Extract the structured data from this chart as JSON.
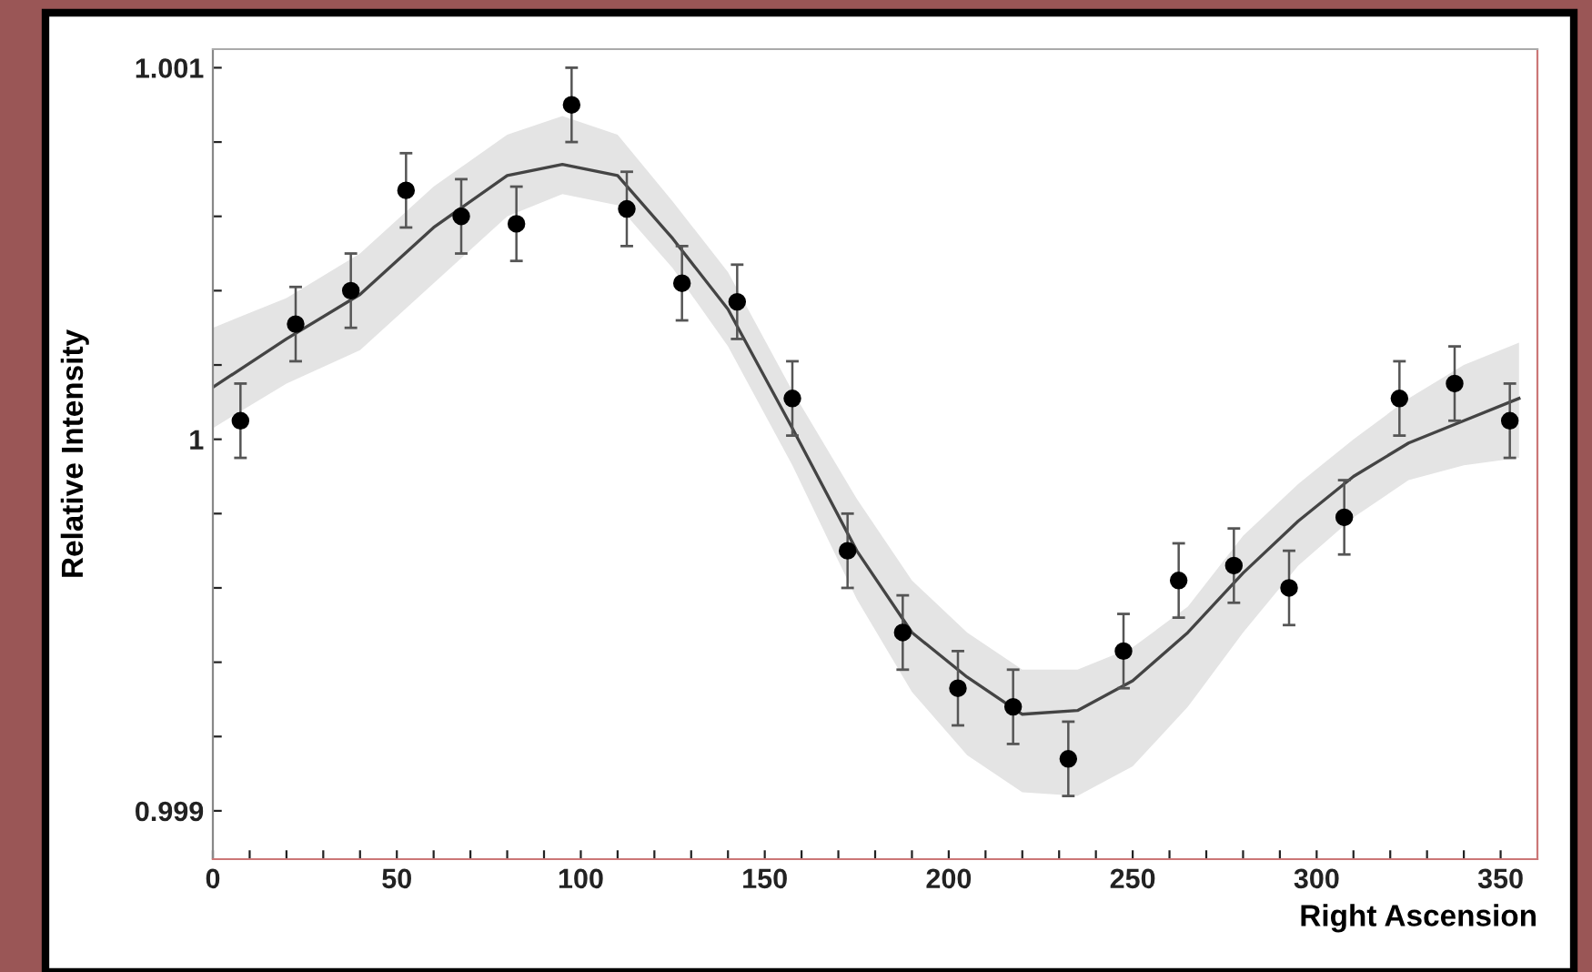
{
  "chart_data": {
    "type": "scatter",
    "xlabel": "Right Ascension",
    "ylabel": "Relative Intensity",
    "xlim": [
      0,
      360
    ],
    "ylim": [
      0.99887,
      1.00105
    ],
    "xticks": [
      0,
      {
        "value": 10,
        "label": null
      },
      {
        "value": 20,
        "label": null
      },
      {
        "value": 30,
        "label": null
      },
      {
        "value": 40,
        "label": null
      },
      50,
      {
        "value": 60,
        "label": null
      },
      {
        "value": 70,
        "label": null
      },
      {
        "value": 80,
        "label": null
      },
      {
        "value": 90,
        "label": null
      },
      100,
      {
        "value": 110,
        "label": null
      },
      {
        "value": 120,
        "label": null
      },
      {
        "value": 130,
        "label": null
      },
      {
        "value": 140,
        "label": null
      },
      150,
      {
        "value": 160,
        "label": null
      },
      {
        "value": 170,
        "label": null
      },
      {
        "value": 180,
        "label": null
      },
      {
        "value": 190,
        "label": null
      },
      200,
      {
        "value": 210,
        "label": null
      },
      {
        "value": 220,
        "label": null
      },
      {
        "value": 230,
        "label": null
      },
      {
        "value": 240,
        "label": null
      },
      250,
      {
        "value": 260,
        "label": null
      },
      {
        "value": 270,
        "label": null
      },
      {
        "value": 280,
        "label": null
      },
      {
        "value": 290,
        "label": null
      },
      300,
      {
        "value": 310,
        "label": null
      },
      {
        "value": 320,
        "label": null
      },
      {
        "value": 330,
        "label": null
      },
      {
        "value": 340,
        "label": null
      },
      350
    ],
    "yticks": [
      0.999,
      {
        "value": 0.9992,
        "label": null
      },
      {
        "value": 0.9994,
        "label": null
      },
      {
        "value": 0.9996,
        "label": null
      },
      {
        "value": 0.9998,
        "label": null
      },
      {
        "value": 1,
        "label": "1"
      },
      {
        "value": 1.0002,
        "label": null
      },
      {
        "value": 1.0004,
        "label": null
      },
      {
        "value": 1.0006,
        "label": null
      },
      {
        "value": 1.0008,
        "label": null
      },
      1.001
    ],
    "marker": "none",
    "series": [
      {
        "type": "line",
        "color": "#444444",
        "line_style": "solid",
        "x": [
          0,
          20,
          40,
          60,
          80,
          95,
          110,
          125,
          140,
          157.5,
          175,
          190,
          205,
          220,
          235,
          250,
          265,
          280,
          295,
          310,
          325,
          340,
          355
        ],
        "values": [
          1.00014,
          1.00027,
          1.00039,
          1.00057,
          1.00071,
          1.00074,
          1.00071,
          1.00054,
          1.00035,
          1.00003,
          0.9997,
          0.99948,
          0.99936,
          0.99926,
          0.99927,
          0.99935,
          0.99948,
          0.99964,
          0.99978,
          0.9999,
          0.99999,
          1.00005,
          1.00011
        ],
        "upper": [
          1.0003,
          1.00038,
          1.0005,
          1.00068,
          1.00082,
          1.00087,
          1.00082,
          1.00064,
          1.00045,
          1.00013,
          0.99984,
          0.99962,
          0.99948,
          0.99938,
          0.99938,
          0.99944,
          0.99955,
          0.99974,
          0.99988,
          1.0,
          1.00011,
          1.0002,
          1.00026
        ],
        "lower": [
          1.00003,
          1.00015,
          1.00024,
          1.00042,
          1.0006,
          1.00066,
          1.00063,
          1.00046,
          1.00025,
          0.99993,
          0.99957,
          0.99932,
          0.99915,
          0.99905,
          0.99904,
          0.99912,
          0.99928,
          0.99948,
          0.99966,
          0.99979,
          0.99989,
          0.99993,
          0.99995
        ]
      },
      {
        "marker": "circle",
        "color": "#000000",
        "x": [
          7.5,
          22.5,
          37.5,
          52.5,
          67.5,
          82.5,
          97.5,
          112.5,
          127.5,
          142.5,
          157.5,
          172.5,
          187.5,
          202.5,
          217.5,
          232.5,
          247.5,
          262.5,
          277.5,
          292.5,
          307.5,
          322.5,
          337.5,
          352.5
        ],
        "values": [
          1.00005,
          1.00031,
          1.0004,
          1.00067,
          1.0006,
          1.00058,
          1.0009,
          1.00062,
          1.00042,
          1.00037,
          1.00011,
          0.9997,
          0.99948,
          0.99933,
          0.99928,
          0.99914,
          0.99943,
          0.99962,
          0.99966,
          0.9996,
          0.99979,
          1.00011,
          1.00015,
          1.00005
        ],
        "errors": [
          0.0001,
          0.0001,
          0.0001,
          0.0001,
          0.0001,
          0.0001,
          0.0001,
          0.0001,
          0.0001,
          0.0001,
          0.0001,
          0.0001,
          0.0001,
          0.0001,
          0.0001,
          0.0001,
          0.0001,
          0.0001,
          0.0001,
          0.0001,
          0.0001,
          0.0001,
          0.0001,
          0.0001
        ]
      }
    ]
  }
}
